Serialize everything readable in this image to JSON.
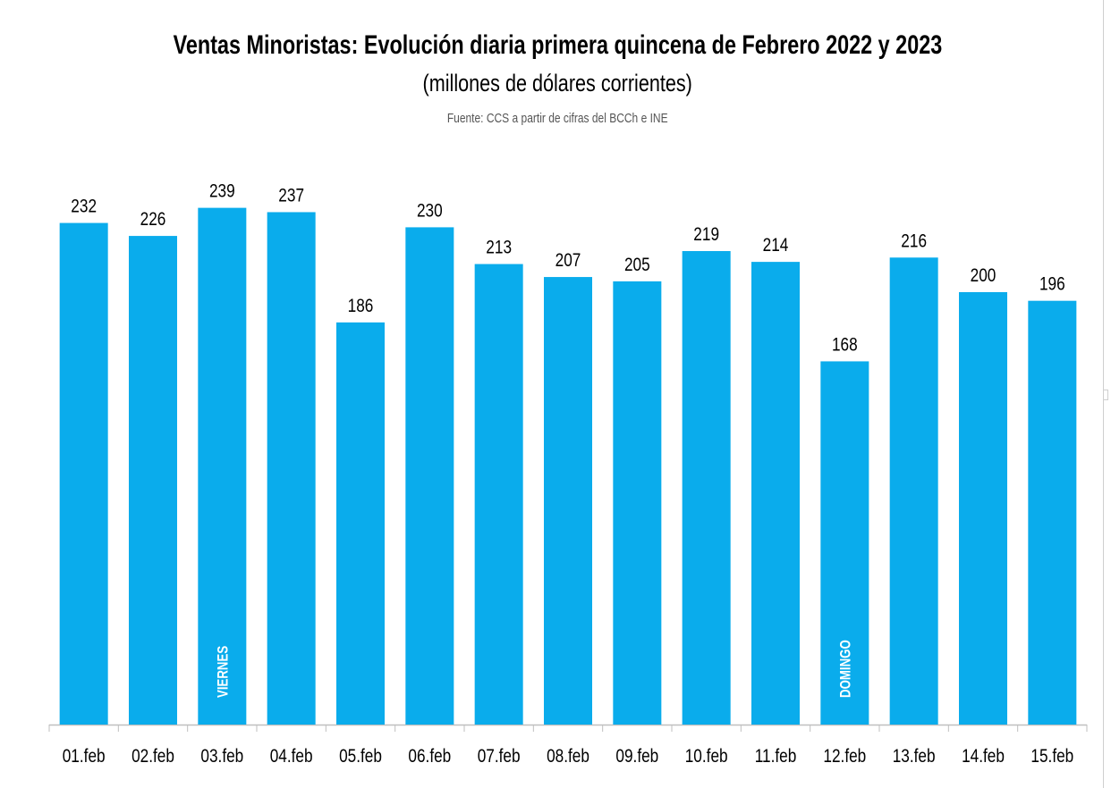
{
  "title": "Ventas Minoristas: Evolución diaria primera quincena de Febrero 2022 y 2023",
  "subtitle": "(millones de dólares corrientes)",
  "source": "Fuente: CCS a partir de cifras del BCCh e INE",
  "colors": {
    "bar": "#0aacec",
    "axis": "#bfbfbf",
    "label": "#000000",
    "inner_label": "#ffffff"
  },
  "chart_data": {
    "type": "bar",
    "title": "Ventas Minoristas: Evolución diaria primera quincena de Febrero 2022 y 2023",
    "subtitle": "(millones de dólares corrientes)",
    "categories": [
      "01.feb",
      "02.feb",
      "03.feb",
      "04.feb",
      "05.feb",
      "06.feb",
      "07.feb",
      "08.feb",
      "09.feb",
      "10.feb",
      "11.feb",
      "12.feb",
      "13.feb",
      "14.feb",
      "15.feb"
    ],
    "values": [
      232,
      226,
      239,
      237,
      186,
      230,
      213,
      207,
      205,
      219,
      214,
      168,
      216,
      200,
      196
    ],
    "ylim": [
      0,
      250
    ],
    "grid": false,
    "legend": "none",
    "annotations": [
      {
        "category": "03.feb",
        "text": "VIERNES"
      },
      {
        "category": "12.feb",
        "text": "DOMINGO"
      }
    ]
  }
}
